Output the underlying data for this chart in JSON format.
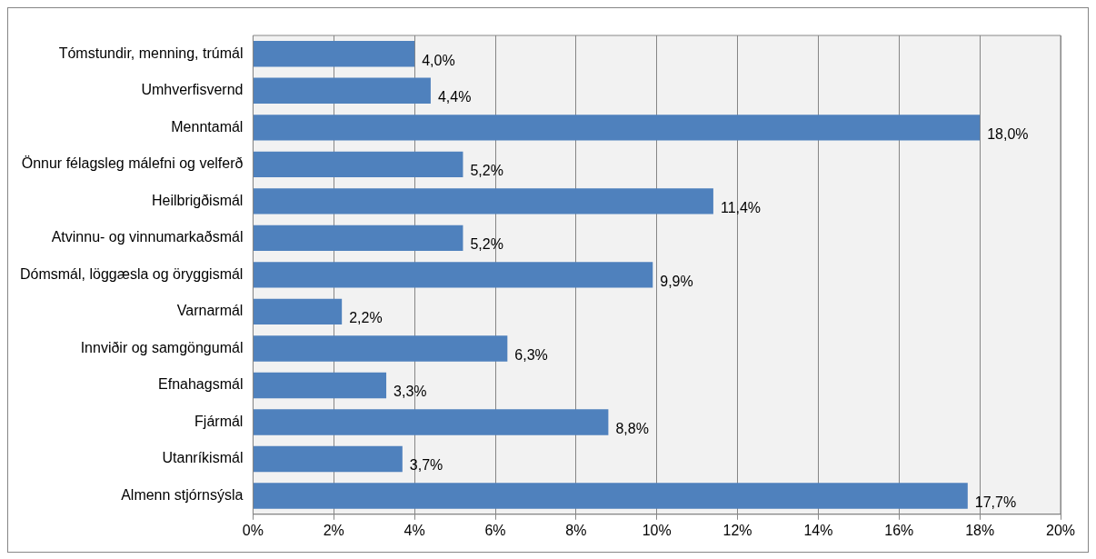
{
  "chart_data": {
    "type": "bar",
    "orientation": "horizontal",
    "categories": [
      "Tómstundir, menning, trúmál",
      "Umhverfisvernd",
      "Menntamál",
      "Önnur félagsleg málefni og velferð",
      "Heilbrigðismál",
      "Atvinnu- og vinnumarkaðsmál",
      "Dómsmál, löggæsla og öryggismál",
      "Varnarmál",
      "Innviðir og samgöngumál",
      "Efnahagsmál",
      "Fjármál",
      "Utanríkismál",
      "Almenn stjórnsýsla"
    ],
    "values": [
      4.0,
      4.4,
      18.0,
      5.2,
      11.4,
      5.2,
      9.9,
      2.2,
      6.3,
      3.3,
      8.8,
      3.7,
      17.7
    ],
    "value_labels": [
      "4,0%",
      "4,4%",
      "18,0%",
      "5,2%",
      "11,4%",
      "5,2%",
      "9,9%",
      "2,2%",
      "6,3%",
      "3,3%",
      "8,8%",
      "3,7%",
      "17,7%"
    ],
    "color": "#4f81bd",
    "xlim": [
      0,
      20
    ],
    "xticks": [
      {
        "value": 0,
        "label": "0%"
      },
      {
        "value": 2,
        "label": "2%"
      },
      {
        "value": 4,
        "label": "4%"
      },
      {
        "value": 6,
        "label": "6%"
      },
      {
        "value": 8,
        "label": "8%"
      },
      {
        "value": 10,
        "label": "10%"
      },
      {
        "value": 12,
        "label": "12%"
      },
      {
        "value": 14,
        "label": "14%"
      },
      {
        "value": 16,
        "label": "16%"
      },
      {
        "value": 18,
        "label": "18%"
      },
      {
        "value": 20,
        "label": "20%"
      }
    ],
    "grid": "x",
    "legend": false
  }
}
